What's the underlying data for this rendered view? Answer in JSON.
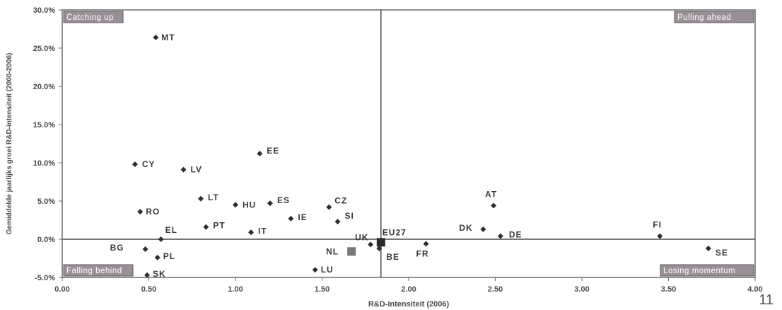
{
  "page_number": "11",
  "chart_data": {
    "type": "scatter",
    "title": "",
    "xlabel": "R&D-intensiteit (2006)",
    "ylabel": "Gemiddelde jaarlijks groei R&D-intensiteit (2000-2006)",
    "xlim": [
      0,
      4
    ],
    "ylim": [
      -0.05,
      0.3
    ],
    "x_ticks": [
      "0.00",
      "0.50",
      "1.00",
      "1.50",
      "2.00",
      "2.50",
      "3.00",
      "3.50",
      "4.00"
    ],
    "y_ticks": [
      "-5.0%",
      "0.0%",
      "5.0%",
      "10.0%",
      "15.0%",
      "20.0%",
      "25.0%",
      "30.0%"
    ],
    "reference_lines": {
      "x": 1.84,
      "y": 0.0
    },
    "quadrant_labels": {
      "top_left": "Catching up",
      "top_right": "Pulling ahead",
      "bottom_left": "Falling behind",
      "bottom_right": "Losing momentum"
    },
    "points": [
      {
        "label": "MT",
        "x": 0.54,
        "y": 0.264
      },
      {
        "label": "EE",
        "x": 1.14,
        "y": 0.112
      },
      {
        "label": "CY",
        "x": 0.42,
        "y": 0.098
      },
      {
        "label": "LV",
        "x": 0.7,
        "y": 0.091
      },
      {
        "label": "LT",
        "x": 0.8,
        "y": 0.053
      },
      {
        "label": "HU",
        "x": 1.0,
        "y": 0.045
      },
      {
        "label": "ES",
        "x": 1.2,
        "y": 0.047
      },
      {
        "label": "CZ",
        "x": 1.54,
        "y": 0.042
      },
      {
        "label": "AT",
        "x": 2.49,
        "y": 0.044
      },
      {
        "label": "RO",
        "x": 0.45,
        "y": 0.036
      },
      {
        "label": "IE",
        "x": 1.32,
        "y": 0.027
      },
      {
        "label": "SI",
        "x": 1.59,
        "y": 0.023
      },
      {
        "label": "PT",
        "x": 0.83,
        "y": 0.016
      },
      {
        "label": "IT",
        "x": 1.09,
        "y": 0.009
      },
      {
        "label": "DK",
        "x": 2.43,
        "y": 0.013
      },
      {
        "label": "DE",
        "x": 2.53,
        "y": 0.004
      },
      {
        "label": "FI",
        "x": 3.45,
        "y": 0.004
      },
      {
        "label": "EL",
        "x": 0.57,
        "y": 0.0
      },
      {
        "label": "UK",
        "x": 1.78,
        "y": -0.007
      },
      {
        "label": "EU27",
        "x": 1.84,
        "y": -0.004,
        "marker": "square"
      },
      {
        "label": "BE",
        "x": 1.83,
        "y": -0.012
      },
      {
        "label": "FR",
        "x": 2.1,
        "y": -0.006
      },
      {
        "label": "NL",
        "x": 1.67,
        "y": -0.016,
        "marker": "square-gray"
      },
      {
        "label": "BG",
        "x": 0.48,
        "y": -0.013
      },
      {
        "label": "PL",
        "x": 0.55,
        "y": -0.024
      },
      {
        "label": "SE",
        "x": 3.73,
        "y": -0.012
      },
      {
        "label": "LU",
        "x": 1.46,
        "y": -0.04
      },
      {
        "label": "SK",
        "x": 0.49,
        "y": -0.047
      }
    ]
  }
}
